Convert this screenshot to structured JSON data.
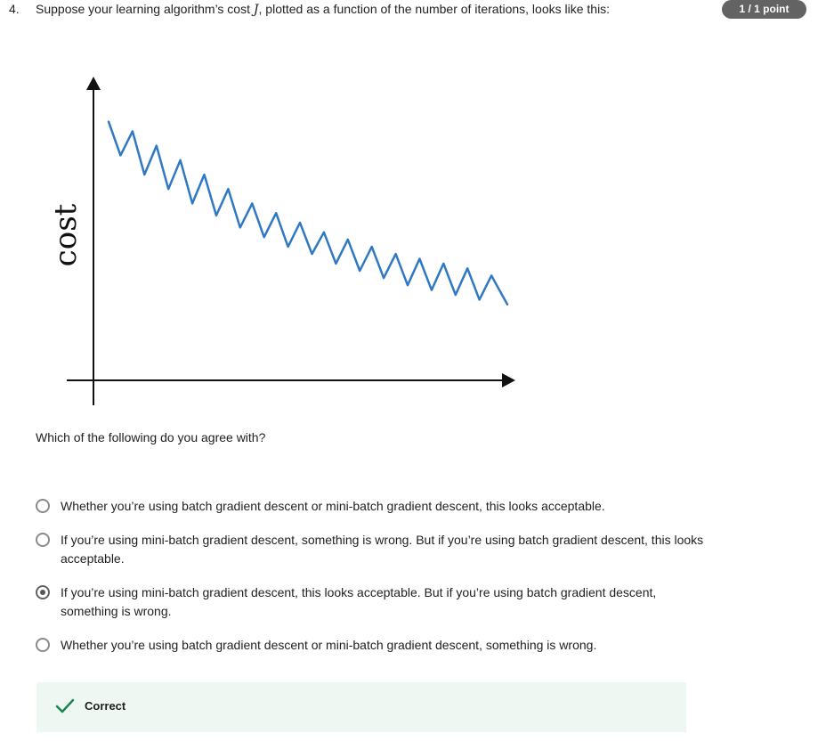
{
  "question": {
    "number": "4.",
    "text_before": "Suppose your learning algorithm’s cost ",
    "math_symbol": "J",
    "text_after": ", plotted as a function of the number of iterations, looks like this:",
    "points_badge": "1 / 1 point"
  },
  "chart_data": {
    "type": "line",
    "title": "",
    "xlabel": "",
    "ylabel": "cost",
    "xlim": [
      0,
      100
    ],
    "ylim": [
      0,
      100
    ],
    "grid": false,
    "series": [
      {
        "color": "#2f78c4",
        "x": [
          0,
          3,
          6,
          9,
          12,
          15,
          18,
          21,
          24,
          27,
          30,
          33,
          36,
          39,
          42,
          45,
          48,
          51,
          54,
          57,
          60,
          63,
          66,
          69,
          72,
          75,
          78,
          81,
          84,
          87,
          90,
          93,
          96,
          100
        ],
        "y": [
          92,
          78,
          88,
          70,
          82,
          64,
          76,
          58,
          70,
          53,
          64,
          48,
          58,
          44,
          54,
          40,
          50,
          37,
          46,
          33,
          43,
          30,
          40,
          27,
          37,
          24,
          35,
          22,
          33,
          20,
          31,
          18,
          28,
          16
        ]
      }
    ]
  },
  "prompt": "Which of the following do you agree with?",
  "options": [
    {
      "label": "Whether you’re using batch gradient descent or mini-batch gradient descent, this looks acceptable.",
      "selected": false
    },
    {
      "label": "If you’re using mini-batch gradient descent, something is wrong. But if you’re using batch gradient descent, this looks acceptable.",
      "selected": false
    },
    {
      "label": "If you’re using mini-batch gradient descent, this looks acceptable. But if you’re using batch gradient descent, something is wrong.",
      "selected": true
    },
    {
      "label": "Whether you’re using batch gradient descent or mini-batch gradient descent, something is wrong.",
      "selected": false
    }
  ],
  "feedback": {
    "icon": "checkmark-icon",
    "text": "Correct",
    "icon_color": "#1f8354",
    "background": "#eef7f2"
  },
  "colors": {
    "badge_background": "#636363",
    "axis": "#111111",
    "curve": "#2f78c4"
  }
}
